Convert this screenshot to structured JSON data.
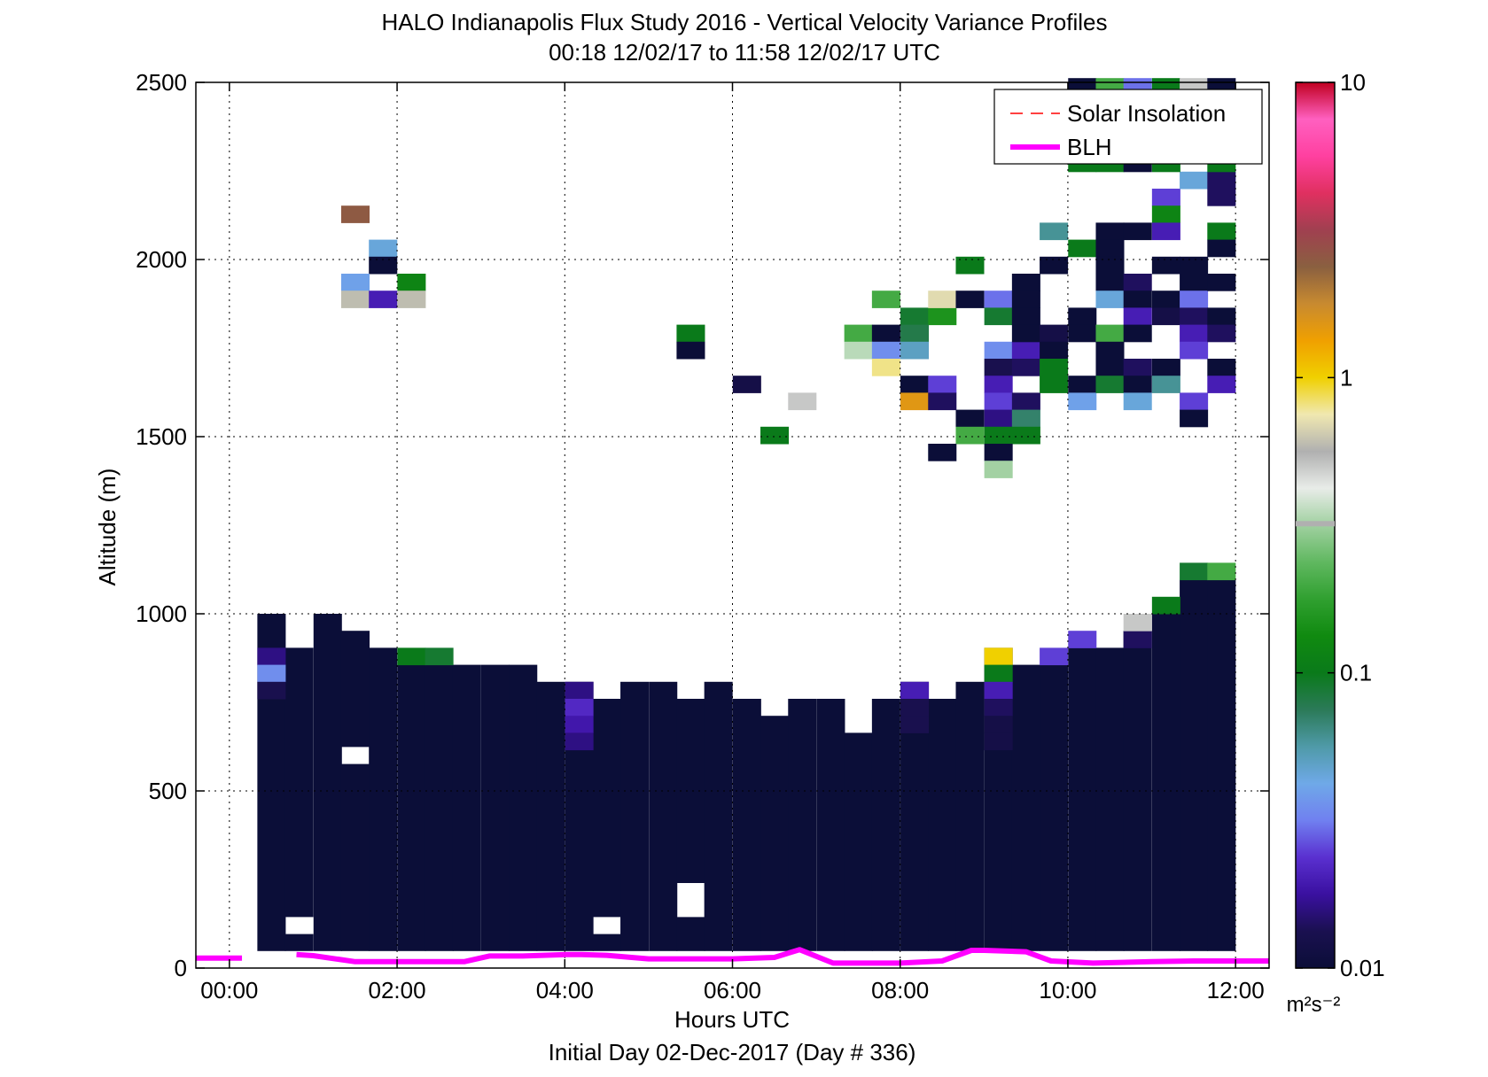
{
  "chart_data": {
    "type": "heatmap",
    "title": "HALO Indianapolis Flux Study 2016 - Vertical Velocity Variance Profiles",
    "subtitle": "00:18 12/02/17 to 11:58 12/02/17  UTC",
    "xlabel": "Hours UTC",
    "ylabel": "Altitude (m)",
    "footer": "Initial Day 02-Dec-2017 (Day # 336)",
    "xlim": [
      -0.4,
      12.4
    ],
    "ylim": [
      0,
      2500
    ],
    "x_tick_values": [
      0,
      2,
      4,
      6,
      8,
      10,
      12
    ],
    "x_tick_labels": [
      "00:00",
      "02:00",
      "04:00",
      "06:00",
      "08:00",
      "10:00",
      "12:00"
    ],
    "y_tick_values": [
      0,
      500,
      1000,
      1500,
      2000,
      2500
    ],
    "y_tick_labels": [
      "0",
      "500",
      "1000",
      "1500",
      "2000",
      "2500"
    ],
    "grid": true,
    "legend": {
      "placement": "top-right",
      "entries": [
        {
          "label": "Solar Insolation",
          "color": "#ff0000",
          "style": "dashed"
        },
        {
          "label": "BLH",
          "color": "#ff00ff",
          "style": "solid"
        }
      ]
    },
    "colorbar": {
      "scale": "log",
      "min": 0.01,
      "max": 10,
      "tick_values": [
        0.01,
        0.1,
        1,
        10
      ],
      "tick_labels": [
        "0.01",
        "0.1",
        "1",
        "10"
      ],
      "unit": "m²s⁻²",
      "colors": [
        "#0b0e38",
        "#1a1050",
        "#3a10a0",
        "#5a30d0",
        "#7080f0",
        "#6fa9e8",
        "#4f9aa8",
        "#2b7a58",
        "#0a7a1a",
        "#108a10",
        "#30a030",
        "#60b860",
        "#a0d0a0",
        "#e8ece8",
        "#b0b0b0",
        "#f0e8b0",
        "#f0d000",
        "#f0a000",
        "#c88a30",
        "#8a6040",
        "#a04050",
        "#e03060",
        "#ff40a0",
        "#ff60c0",
        "#c00020"
      ],
      "gray_band_at": 0.32
    },
    "time_step_h": 0.3333,
    "alt_step_m": 48,
    "blh": {
      "name": "BLH",
      "x": [
        -0.4,
        0.15,
        0.5,
        0.8,
        1.0,
        1.5,
        2.0,
        2.5,
        2.8,
        3.1,
        3.5,
        4.0,
        4.2,
        4.5,
        5.0,
        5.5,
        6.0,
        6.5,
        6.8,
        7.2,
        7.5,
        8.0,
        8.5,
        8.85,
        9.0,
        9.5,
        9.8,
        10.3,
        11.0,
        11.5,
        12.4
      ],
      "y": [
        28,
        28,
        null,
        38,
        35,
        18,
        18,
        18,
        18,
        34,
        34,
        38,
        38,
        36,
        26,
        26,
        26,
        30,
        52,
        14,
        14,
        14,
        20,
        50,
        50,
        46,
        20,
        14,
        18,
        20,
        20
      ]
    },
    "profile_columns": [
      {
        "t": 0.5,
        "top": 1000,
        "gaps": []
      },
      {
        "t": 0.83,
        "top": 904,
        "gaps": [
          [
            96,
            144
          ]
        ]
      },
      {
        "t": 1.17,
        "top": 1000,
        "gaps": []
      },
      {
        "t": 1.5,
        "top": 952,
        "gaps": [
          [
            576,
            624
          ]
        ]
      },
      {
        "t": 1.83,
        "top": 904,
        "gaps": []
      },
      {
        "t": 2.17,
        "top": 856,
        "gaps": []
      },
      {
        "t": 2.5,
        "top": 856,
        "gaps": []
      },
      {
        "t": 2.83,
        "top": 856,
        "gaps": []
      },
      {
        "t": 3.17,
        "top": 856,
        "gaps": []
      },
      {
        "t": 3.5,
        "top": 856,
        "gaps": []
      },
      {
        "t": 3.83,
        "top": 808,
        "gaps": []
      },
      {
        "t": 4.17,
        "top": 808,
        "gaps": []
      },
      {
        "t": 4.5,
        "top": 760,
        "gaps": [
          [
            96,
            144
          ]
        ]
      },
      {
        "t": 4.83,
        "top": 808,
        "gaps": []
      },
      {
        "t": 5.17,
        "top": 808,
        "gaps": []
      },
      {
        "t": 5.5,
        "top": 760,
        "gaps": [
          [
            144,
            240
          ]
        ]
      },
      {
        "t": 5.83,
        "top": 808,
        "gaps": []
      },
      {
        "t": 6.17,
        "top": 760,
        "gaps": []
      },
      {
        "t": 6.5,
        "top": 712,
        "gaps": []
      },
      {
        "t": 6.83,
        "top": 760,
        "gaps": []
      },
      {
        "t": 7.17,
        "top": 760,
        "gaps": []
      },
      {
        "t": 7.5,
        "top": 664,
        "gaps": []
      },
      {
        "t": 7.83,
        "top": 760,
        "gaps": []
      },
      {
        "t": 8.17,
        "top": 808,
        "gaps": []
      },
      {
        "t": 8.5,
        "top": 760,
        "gaps": []
      },
      {
        "t": 8.83,
        "top": 808,
        "gaps": []
      },
      {
        "t": 9.17,
        "top": 904,
        "gaps": []
      },
      {
        "t": 9.5,
        "top": 856,
        "gaps": []
      },
      {
        "t": 9.83,
        "top": 856,
        "gaps": []
      },
      {
        "t": 10.17,
        "top": 904,
        "gaps": []
      },
      {
        "t": 10.5,
        "top": 904,
        "gaps": []
      },
      {
        "t": 10.83,
        "top": 952,
        "gaps": []
      },
      {
        "t": 11.17,
        "top": 1000,
        "gaps": []
      },
      {
        "t": 11.5,
        "top": 1096,
        "gaps": []
      },
      {
        "t": 11.83,
        "top": 1096,
        "gaps": []
      }
    ],
    "variance_cells": [
      {
        "t": 0.5,
        "z": 880,
        "v": 0.016
      },
      {
        "t": 0.5,
        "z": 832,
        "v": 0.035
      },
      {
        "t": 0.5,
        "z": 784,
        "v": 0.013
      },
      {
        "t": 2.17,
        "z": 880,
        "v": 0.1
      },
      {
        "t": 2.5,
        "z": 880,
        "v": 0.09
      },
      {
        "t": 4.17,
        "z": 784,
        "v": 0.016
      },
      {
        "t": 4.17,
        "z": 736,
        "v": 0.022
      },
      {
        "t": 4.17,
        "z": 688,
        "v": 0.019
      },
      {
        "t": 4.17,
        "z": 640,
        "v": 0.016
      },
      {
        "t": 8.17,
        "z": 784,
        "v": 0.02
      },
      {
        "t": 8.17,
        "z": 736,
        "v": 0.013
      },
      {
        "t": 8.17,
        "z": 688,
        "v": 0.013
      },
      {
        "t": 9.17,
        "z": 880,
        "v": 1.0
      },
      {
        "t": 9.17,
        "z": 832,
        "v": 0.1
      },
      {
        "t": 9.17,
        "z": 784,
        "v": 0.02
      },
      {
        "t": 9.17,
        "z": 736,
        "v": 0.014
      },
      {
        "t": 9.17,
        "z": 688,
        "v": 0.012
      },
      {
        "t": 9.17,
        "z": 640,
        "v": 0.012
      },
      {
        "t": 9.83,
        "z": 880,
        "v": 0.025
      },
      {
        "t": 10.17,
        "z": 928,
        "v": 0.025
      },
      {
        "t": 10.83,
        "z": 928,
        "v": 0.014
      },
      {
        "t": 10.83,
        "z": 976,
        "v": 0.5
      },
      {
        "t": 11.17,
        "z": 1024,
        "v": 0.1
      },
      {
        "t": 11.5,
        "z": 1120,
        "v": 0.09
      },
      {
        "t": 11.83,
        "z": 1120,
        "v": 0.2
      },
      {
        "t": 1.5,
        "z": 2128,
        "v": 2.5
      },
      {
        "t": 1.83,
        "z": 2032,
        "v": 0.045
      },
      {
        "t": 1.83,
        "z": 1984,
        "v": 0.01
      },
      {
        "t": 1.5,
        "z": 1936,
        "v": 0.04
      },
      {
        "t": 2.17,
        "z": 1936,
        "v": 0.12
      },
      {
        "t": 1.5,
        "z": 1888,
        "v": 0.6
      },
      {
        "t": 1.83,
        "z": 1888,
        "v": 0.02
      },
      {
        "t": 2.17,
        "z": 1888,
        "v": 0.6
      },
      {
        "t": 5.5,
        "z": 1792,
        "v": 0.1
      },
      {
        "t": 5.5,
        "z": 1744,
        "v": 0.01
      },
      {
        "t": 6.17,
        "z": 1648,
        "v": 0.012
      },
      {
        "t": 6.83,
        "z": 1600,
        "v": 0.5
      },
      {
        "t": 6.5,
        "z": 1504,
        "v": 0.1
      },
      {
        "t": 7.83,
        "z": 1888,
        "v": 0.2
      },
      {
        "t": 7.5,
        "z": 1792,
        "v": 0.2
      },
      {
        "t": 7.83,
        "z": 1792,
        "v": 0.01
      },
      {
        "t": 7.5,
        "z": 1744,
        "v": 0.35
      },
      {
        "t": 7.83,
        "z": 1744,
        "v": 0.035
      },
      {
        "t": 7.83,
        "z": 1696,
        "v": 0.8
      },
      {
        "t": 8.17,
        "z": 1840,
        "v": 0.09
      },
      {
        "t": 8.5,
        "z": 1840,
        "v": 0.15
      },
      {
        "t": 8.17,
        "z": 1792,
        "v": 0.08
      },
      {
        "t": 8.17,
        "z": 1744,
        "v": 0.05
      },
      {
        "t": 8.17,
        "z": 1648,
        "v": 0.01
      },
      {
        "t": 8.5,
        "z": 1648,
        "v": 0.025
      },
      {
        "t": 8.17,
        "z": 1600,
        "v": 1.5
      },
      {
        "t": 8.5,
        "z": 1600,
        "v": 0.014
      },
      {
        "t": 8.5,
        "z": 1888,
        "v": 0.7
      },
      {
        "t": 8.83,
        "z": 1888,
        "v": 0.01
      },
      {
        "t": 9.17,
        "z": 1888,
        "v": 0.03
      },
      {
        "t": 8.83,
        "z": 1984,
        "v": 0.1
      },
      {
        "t": 9.17,
        "z": 1840,
        "v": 0.09
      },
      {
        "t": 9.17,
        "z": 1744,
        "v": 0.035
      },
      {
        "t": 9.5,
        "z": 1744,
        "v": 0.02
      },
      {
        "t": 9.17,
        "z": 1696,
        "v": 0.013
      },
      {
        "t": 9.5,
        "z": 1696,
        "v": 0.014
      },
      {
        "t": 9.17,
        "z": 1648,
        "v": 0.02
      },
      {
        "t": 9.17,
        "z": 1600,
        "v": 0.025
      },
      {
        "t": 9.5,
        "z": 1600,
        "v": 0.014
      },
      {
        "t": 8.83,
        "z": 1552,
        "v": 0.01
      },
      {
        "t": 9.17,
        "z": 1552,
        "v": 0.016
      },
      {
        "t": 9.5,
        "z": 1552,
        "v": 0.07
      },
      {
        "t": 8.83,
        "z": 1504,
        "v": 0.2
      },
      {
        "t": 9.17,
        "z": 1504,
        "v": 0.1
      },
      {
        "t": 9.5,
        "z": 1504,
        "v": 0.1
      },
      {
        "t": 8.5,
        "z": 1456,
        "v": 0.01
      },
      {
        "t": 9.17,
        "z": 1456,
        "v": 0.01
      },
      {
        "t": 9.17,
        "z": 1408,
        "v": 0.32
      },
      {
        "t": 9.5,
        "z": 1936,
        "v": 0.01
      },
      {
        "t": 9.5,
        "z": 1888,
        "v": 0.01
      },
      {
        "t": 9.5,
        "z": 1840,
        "v": 0.01
      },
      {
        "t": 9.5,
        "z": 1792,
        "v": 0.01
      },
      {
        "t": 9.83,
        "z": 1792,
        "v": 0.012
      },
      {
        "t": 9.83,
        "z": 1744,
        "v": 0.01
      },
      {
        "t": 9.83,
        "z": 1696,
        "v": 0.1
      },
      {
        "t": 9.83,
        "z": 1648,
        "v": 0.1
      },
      {
        "t": 9.83,
        "z": 1984,
        "v": 0.01
      },
      {
        "t": 9.83,
        "z": 2080,
        "v": 0.06
      },
      {
        "t": 10.17,
        "z": 2032,
        "v": 0.1
      },
      {
        "t": 10.17,
        "z": 1840,
        "v": 0.01
      },
      {
        "t": 10.17,
        "z": 1792,
        "v": 0.01
      },
      {
        "t": 10.17,
        "z": 1648,
        "v": 0.01
      },
      {
        "t": 10.17,
        "z": 1600,
        "v": 0.04
      },
      {
        "t": 10.5,
        "z": 2080,
        "v": 0.01
      },
      {
        "t": 10.5,
        "z": 2032,
        "v": 0.01
      },
      {
        "t": 10.5,
        "z": 1984,
        "v": 0.01
      },
      {
        "t": 10.5,
        "z": 1936,
        "v": 0.01
      },
      {
        "t": 10.5,
        "z": 1888,
        "v": 0.045
      },
      {
        "t": 10.5,
        "z": 1792,
        "v": 0.2
      },
      {
        "t": 10.5,
        "z": 1744,
        "v": 0.01
      },
      {
        "t": 10.5,
        "z": 1696,
        "v": 0.01
      },
      {
        "t": 10.5,
        "z": 1648,
        "v": 0.09
      },
      {
        "t": 10.83,
        "z": 2080,
        "v": 0.01
      },
      {
        "t": 10.83,
        "z": 1936,
        "v": 0.014
      },
      {
        "t": 10.83,
        "z": 1888,
        "v": 0.01
      },
      {
        "t": 10.83,
        "z": 1840,
        "v": 0.02
      },
      {
        "t": 10.83,
        "z": 1792,
        "v": 0.01
      },
      {
        "t": 10.83,
        "z": 1696,
        "v": 0.014
      },
      {
        "t": 10.83,
        "z": 1648,
        "v": 0.01
      },
      {
        "t": 10.83,
        "z": 1600,
        "v": 0.045
      },
      {
        "t": 11.17,
        "z": 2176,
        "v": 0.025
      },
      {
        "t": 11.17,
        "z": 2128,
        "v": 0.12
      },
      {
        "t": 11.17,
        "z": 2080,
        "v": 0.02
      },
      {
        "t": 11.17,
        "z": 1984,
        "v": 0.01
      },
      {
        "t": 11.17,
        "z": 1888,
        "v": 0.01
      },
      {
        "t": 11.17,
        "z": 1840,
        "v": 0.012
      },
      {
        "t": 11.17,
        "z": 1696,
        "v": 0.01
      },
      {
        "t": 11.17,
        "z": 1648,
        "v": 0.06
      },
      {
        "t": 11.5,
        "z": 2224,
        "v": 0.045
      },
      {
        "t": 11.5,
        "z": 1984,
        "v": 0.01
      },
      {
        "t": 11.5,
        "z": 1936,
        "v": 0.01
      },
      {
        "t": 11.5,
        "z": 1888,
        "v": 0.03
      },
      {
        "t": 11.5,
        "z": 1840,
        "v": 0.014
      },
      {
        "t": 11.5,
        "z": 1792,
        "v": 0.02
      },
      {
        "t": 11.5,
        "z": 1744,
        "v": 0.025
      },
      {
        "t": 11.5,
        "z": 1600,
        "v": 0.025
      },
      {
        "t": 11.5,
        "z": 1552,
        "v": 0.01
      },
      {
        "t": 11.83,
        "z": 2224,
        "v": 0.014
      },
      {
        "t": 11.83,
        "z": 2176,
        "v": 0.014
      },
      {
        "t": 11.83,
        "z": 2080,
        "v": 0.1
      },
      {
        "t": 11.83,
        "z": 2032,
        "v": 0.01
      },
      {
        "t": 11.83,
        "z": 1936,
        "v": 0.01
      },
      {
        "t": 11.83,
        "z": 1840,
        "v": 0.01
      },
      {
        "t": 11.83,
        "z": 1792,
        "v": 0.014
      },
      {
        "t": 11.83,
        "z": 1696,
        "v": 0.01
      },
      {
        "t": 11.83,
        "z": 1648,
        "v": 0.02
      },
      {
        "t": 10.17,
        "z": 2272,
        "v": 0.1
      },
      {
        "t": 10.5,
        "z": 2272,
        "v": 0.1
      },
      {
        "t": 10.83,
        "z": 2272,
        "v": 0.01
      },
      {
        "t": 11.17,
        "z": 2272,
        "v": 0.1
      },
      {
        "t": 11.83,
        "z": 2272,
        "v": 0.1
      },
      {
        "t": 10.17,
        "z": 2488,
        "v": 0.01
      },
      {
        "t": 10.5,
        "z": 2488,
        "v": 0.2
      },
      {
        "t": 10.83,
        "z": 2488,
        "v": 0.03
      },
      {
        "t": 11.17,
        "z": 2488,
        "v": 0.1
      },
      {
        "t": 11.5,
        "z": 2488,
        "v": 0.5
      },
      {
        "t": 11.83,
        "z": 2488,
        "v": 0.01
      }
    ]
  }
}
